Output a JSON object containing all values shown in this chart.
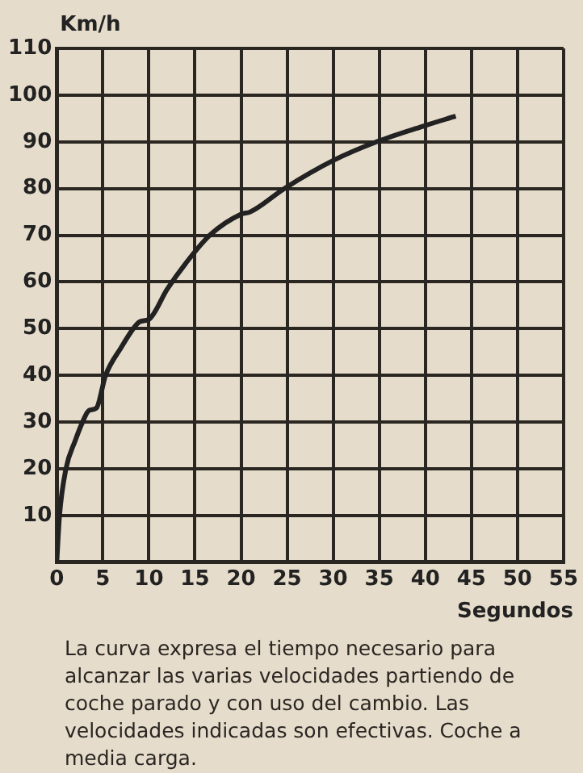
{
  "chart_data": {
    "type": "line",
    "xlabel": "Segundos",
    "ylabel": "Km/h",
    "x": [
      0,
      0.3,
      1,
      2,
      2.8,
      3.5,
      4.3,
      5.3,
      7,
      8.3,
      9,
      10,
      12,
      14,
      16.6,
      20,
      21,
      24.7,
      30,
      34.7,
      40,
      43.3
    ],
    "values": [
      0,
      10,
      20,
      26,
      30,
      32.5,
      33,
      40,
      46,
      50,
      51.5,
      52,
      58.5,
      64,
      70,
      74.5,
      75,
      80,
      86,
      90,
      93.5,
      95.5
    ],
    "color": "#222222",
    "marker": "none",
    "line_style": "solid",
    "xlim": [
      0,
      55
    ],
    "xticks": [
      0,
      5,
      10,
      15,
      20,
      25,
      30,
      35,
      40,
      45,
      50,
      55
    ],
    "ylim": [
      0,
      110
    ],
    "yticks": [
      {
        "value": 0,
        "label": null
      },
      10,
      20,
      30,
      40,
      50,
      60,
      70,
      80,
      90,
      100,
      110
    ],
    "grid": true,
    "annotations": [
      "La curva expresa el tiempo necesario para alcanzar las varias velocidades partiendo de coche parado y con uso del cambio. Las velocidades indicadas son efectivas. Coche a media carga."
    ]
  }
}
